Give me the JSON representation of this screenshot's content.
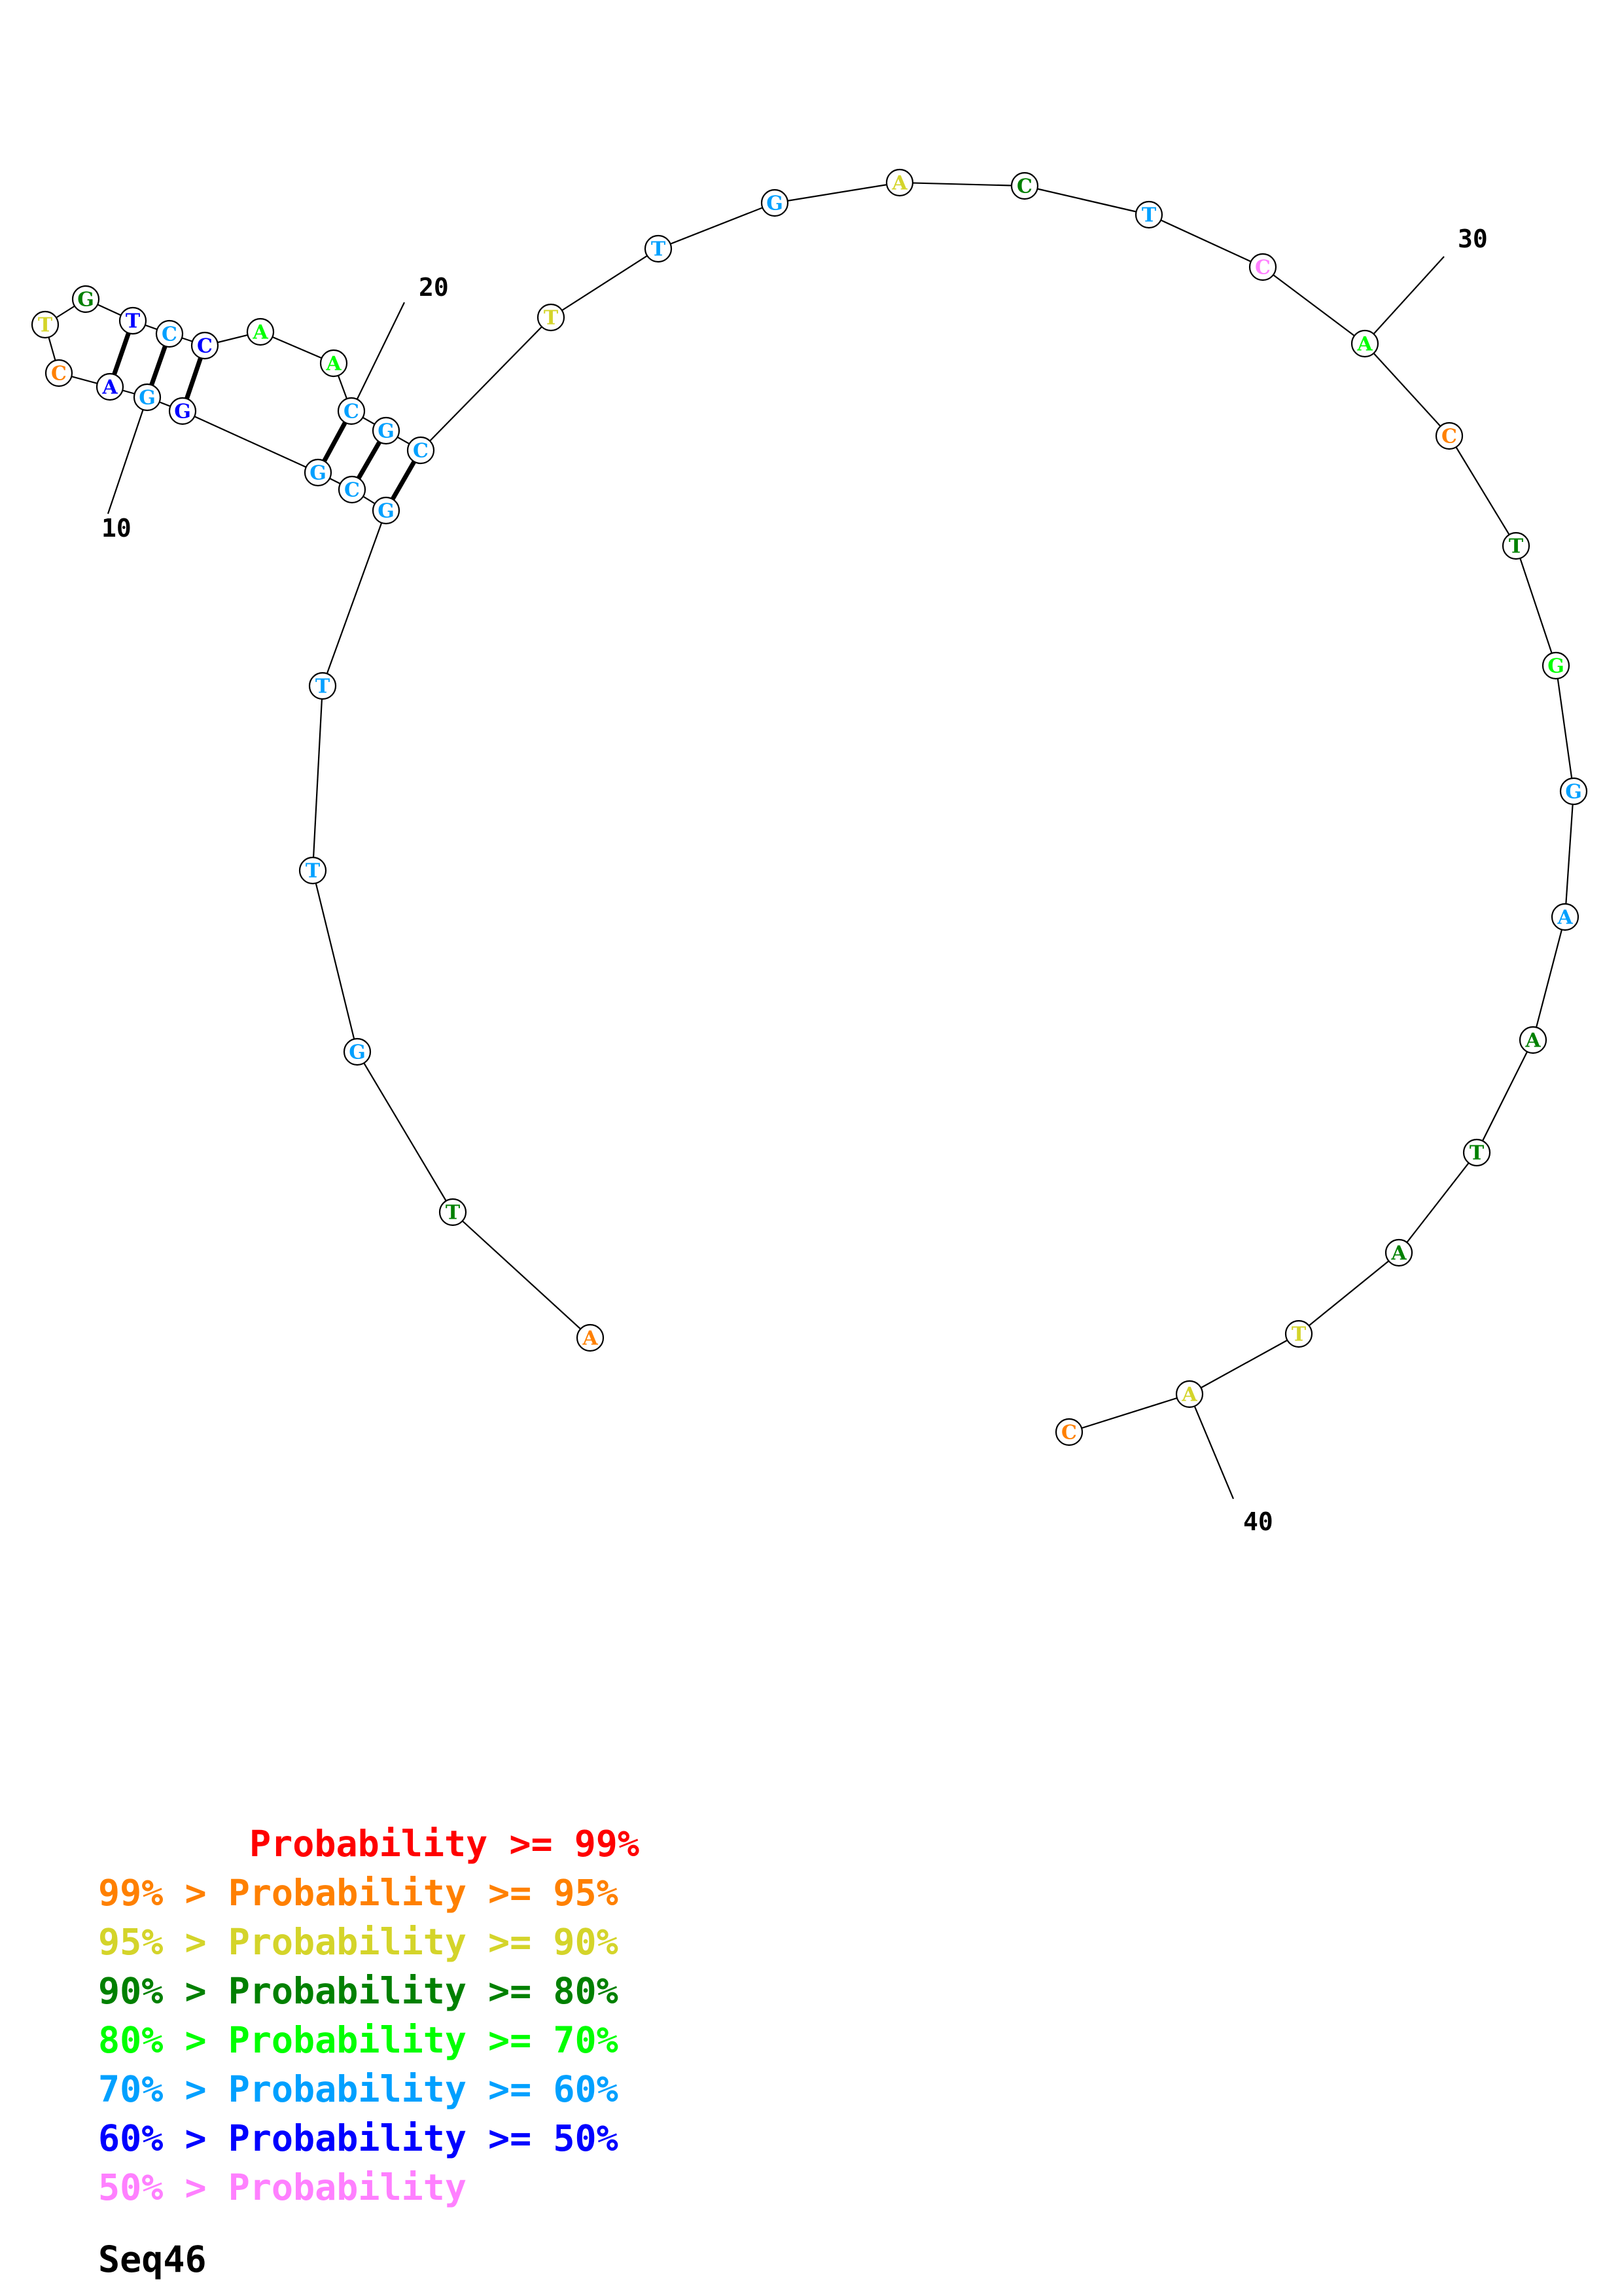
{
  "title": "Seq46",
  "colors": {
    "p99": "#ff0000",
    "p95": "#ff8000",
    "p90": "#d4d42a",
    "p80": "#008000",
    "p70": "#00ff00",
    "p60": "#00a0ff",
    "p50": "#0000ff",
    "plow": "#ff80ff"
  },
  "legend": [
    {
      "prefix": "",
      "label": "Probability >= 99%",
      "color_key": "p99"
    },
    {
      "prefix": "99% > ",
      "label": "Probability >= 95%",
      "color_key": "p95"
    },
    {
      "prefix": "95% > ",
      "label": "Probability >= 90%",
      "color_key": "p90"
    },
    {
      "prefix": "90% > ",
      "label": "Probability >= 80%",
      "color_key": "p80"
    },
    {
      "prefix": "80% > ",
      "label": "Probability >= 70%",
      "color_key": "p70"
    },
    {
      "prefix": "70% > ",
      "label": "Probability >= 60%",
      "color_key": "p60"
    },
    {
      "prefix": "60% > ",
      "label": "Probability >= 50%",
      "color_key": "p50"
    },
    {
      "prefix": "50% > ",
      "label": "Probability",
      "color_key": "plow"
    }
  ],
  "sequence": [
    {
      "n": 1,
      "base": "A",
      "prob": "p95"
    },
    {
      "n": 2,
      "base": "T",
      "prob": "p80"
    },
    {
      "n": 3,
      "base": "G",
      "prob": "p60"
    },
    {
      "n": 4,
      "base": "T",
      "prob": "p60"
    },
    {
      "n": 5,
      "base": "T",
      "prob": "p60"
    },
    {
      "n": 6,
      "base": "G",
      "prob": "p60"
    },
    {
      "n": 7,
      "base": "C",
      "prob": "p60"
    },
    {
      "n": 8,
      "base": "G",
      "prob": "p60"
    },
    {
      "n": 9,
      "base": "G",
      "prob": "p50"
    },
    {
      "n": 10,
      "base": "G",
      "prob": "p60"
    },
    {
      "n": 11,
      "base": "A",
      "prob": "p50"
    },
    {
      "n": 12,
      "base": "C",
      "prob": "p95"
    },
    {
      "n": 13,
      "base": "T",
      "prob": "p90"
    },
    {
      "n": 14,
      "base": "G",
      "prob": "p80"
    },
    {
      "n": 15,
      "base": "T",
      "prob": "p50"
    },
    {
      "n": 16,
      "base": "C",
      "prob": "p60"
    },
    {
      "n": 17,
      "base": "C",
      "prob": "p50"
    },
    {
      "n": 18,
      "base": "A",
      "prob": "p70"
    },
    {
      "n": 19,
      "base": "A",
      "prob": "p70"
    },
    {
      "n": 20,
      "base": "C",
      "prob": "p60"
    },
    {
      "n": 21,
      "base": "G",
      "prob": "p60"
    },
    {
      "n": 22,
      "base": "C",
      "prob": "p60"
    },
    {
      "n": 23,
      "base": "T",
      "prob": "p90"
    },
    {
      "n": 24,
      "base": "T",
      "prob": "p60"
    },
    {
      "n": 25,
      "base": "G",
      "prob": "p60"
    },
    {
      "n": 26,
      "base": "A",
      "prob": "p90"
    },
    {
      "n": 27,
      "base": "C",
      "prob": "p80"
    },
    {
      "n": 28,
      "base": "T",
      "prob": "p60"
    },
    {
      "n": 29,
      "base": "C",
      "prob": "plow"
    },
    {
      "n": 30,
      "base": "A",
      "prob": "p70"
    },
    {
      "n": 31,
      "base": "C",
      "prob": "p95"
    },
    {
      "n": 32,
      "base": "T",
      "prob": "p80"
    },
    {
      "n": 33,
      "base": "G",
      "prob": "p70"
    },
    {
      "n": 34,
      "base": "G",
      "prob": "p60"
    },
    {
      "n": 35,
      "base": "A",
      "prob": "p60"
    },
    {
      "n": 36,
      "base": "A",
      "prob": "p80"
    },
    {
      "n": 37,
      "base": "T",
      "prob": "p80"
    },
    {
      "n": 38,
      "base": "A",
      "prob": "p80"
    },
    {
      "n": 39,
      "base": "T",
      "prob": "p90"
    },
    {
      "n": 40,
      "base": "A",
      "prob": "p90"
    },
    {
      "n": 41,
      "base": "C",
      "prob": "p95"
    }
  ],
  "pairs": [
    [
      6,
      22
    ],
    [
      7,
      21
    ],
    [
      8,
      20
    ],
    [
      9,
      17
    ],
    [
      10,
      16
    ],
    [
      11,
      15
    ]
  ],
  "number_labels": [
    {
      "n": 10,
      "text": "10"
    },
    {
      "n": 20,
      "text": "20"
    },
    {
      "n": 30,
      "text": "30"
    },
    {
      "n": 40,
      "text": "40"
    }
  ]
}
